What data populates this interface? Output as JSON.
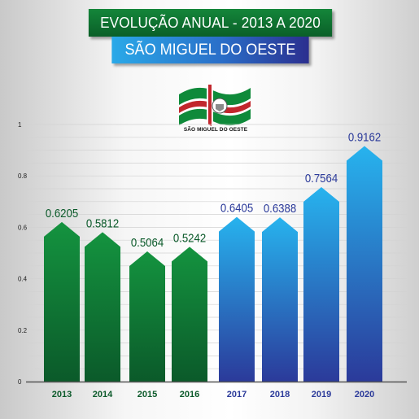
{
  "header": {
    "title": "EVOLUÇÃO ANUAL - 2013 A 2020",
    "subtitle": "SÃO MIGUEL DO OESTE"
  },
  "logo": {
    "label": "SÃO MIGUEL DO OESTE",
    "icon": "flag-icon",
    "colors": {
      "green": "#0f8a3a",
      "red": "#c1272d",
      "white": "#ffffff"
    }
  },
  "chart_data": {
    "type": "bar",
    "categories": [
      "2013",
      "2014",
      "2015",
      "2016",
      "2017",
      "2018",
      "2019",
      "2020"
    ],
    "values": [
      0.6205,
      0.5812,
      0.5064,
      0.5242,
      0.6405,
      0.6388,
      0.7564,
      0.9162
    ],
    "value_labels": [
      "0.6205",
      "0.5812",
      "0.5064",
      "0.5242",
      "0.6405",
      "0.6388",
      "0.7564",
      "0.9162"
    ],
    "yticks": [
      "0",
      "0.2",
      "0.4",
      "0.6",
      "0.8",
      "1"
    ],
    "ylim": [
      0,
      1
    ],
    "grid": true,
    "bar_shape": "arrow-top",
    "colors": {
      "green_top": "#14933f",
      "green_bottom": "#0b5a2a",
      "blue_top": "#27b3ee",
      "blue_bottom": "#2b3a9a",
      "label_green": "#0b5a2a",
      "label_blue": "#2b3a9a"
    },
    "color_groups": [
      "green",
      "green",
      "green",
      "green",
      "blue",
      "blue",
      "blue",
      "blue"
    ]
  }
}
